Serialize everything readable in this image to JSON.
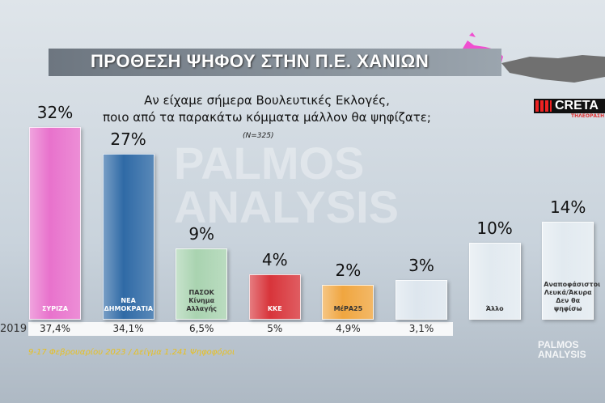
{
  "chart_data": {
    "type": "bar",
    "title": "ΠΡΟΘΕΣΗ ΨΗΦΟΥ ΣΤΗΝ Π.Ε. ΧΑΝΙΩΝ",
    "subtitle": [
      "Αν είχαμε σήμερα Βουλευτικές Εκλογές,",
      "ποιο από τα παρακάτω κόμματα μάλλον θα ψηφίζατε;"
    ],
    "sample_note": "(N=325)",
    "categories": [
      "ΣΥΡΙΖΑ",
      "ΝΕΑ ΔΗΜΟΚΡΑΤΙΑ",
      "ΠΑΣΟΚ Κίνημα Αλλαγής",
      "ΚΚΕ",
      "ΜέΡΑ25",
      null,
      "Άλλο",
      "Αναποφάσιστοι Λευκά/Άκυρα Δεν θα ψηφίσω"
    ],
    "values": [
      32,
      27,
      9,
      4,
      2,
      3,
      10,
      14
    ],
    "value_labels": [
      "32%",
      "27%",
      "9%",
      "4%",
      "2%",
      "3%",
      "10%",
      "14%"
    ],
    "colors": [
      "#e872cc",
      "#2f6aa6",
      "#a9d3b0",
      "#d8343a",
      "#f0a640",
      "#dde6ee",
      "#e2eaf0",
      "#e2eaf0"
    ],
    "comparison": {
      "name": "2019",
      "values": [
        37.4,
        34.1,
        6.5,
        5,
        4.9,
        3.1,
        null,
        null
      ],
      "value_labels": [
        "37,4%",
        "34,1%",
        "6,5%",
        "5%",
        "4,9%",
        "3,1%",
        null,
        null
      ]
    },
    "footnote": "9-17 Φεβρουαρίου 2023 / Δείγμα 1.241 Ψηφοφόροι",
    "watermark": "PALMOS ANALYSIS",
    "logo": {
      "name": "CRETA",
      "tagline": "ΤΗΛΕΟΡΑΣΗ"
    }
  }
}
